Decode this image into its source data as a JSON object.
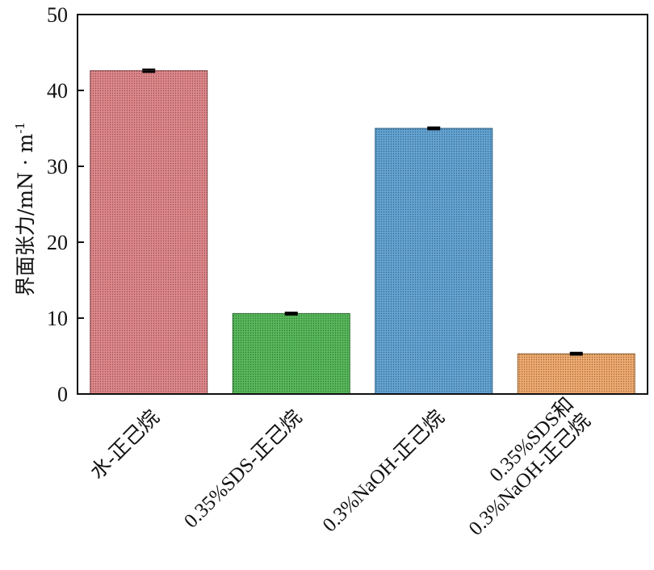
{
  "chart_data": {
    "type": "bar",
    "title": "",
    "xlabel": "",
    "ylabel": "界面张力/mN · m",
    "ylabel_superscript": "-1",
    "ylim": [
      0,
      50
    ],
    "yticks": [
      0,
      10,
      20,
      30,
      40,
      50
    ],
    "grid": false,
    "categories": [
      [
        "水-正己烷"
      ],
      [
        "0.35%SDS-正己烷"
      ],
      [
        "0.3%NaOH-正己烷"
      ],
      [
        "0.35%SDS和",
        "0.3%NaOH-正己烷"
      ]
    ],
    "values": [
      42.6,
      10.6,
      35.0,
      5.3
    ],
    "error": [
      0.15,
      0.12,
      0.12,
      0.12
    ],
    "colors": [
      "#e0878a",
      "#57b95a",
      "#63a4d4",
      "#f0aa6e"
    ],
    "edge_colors": [
      "#8a4a4d",
      "#2f6d31",
      "#2f5f80",
      "#8f6137"
    ]
  }
}
